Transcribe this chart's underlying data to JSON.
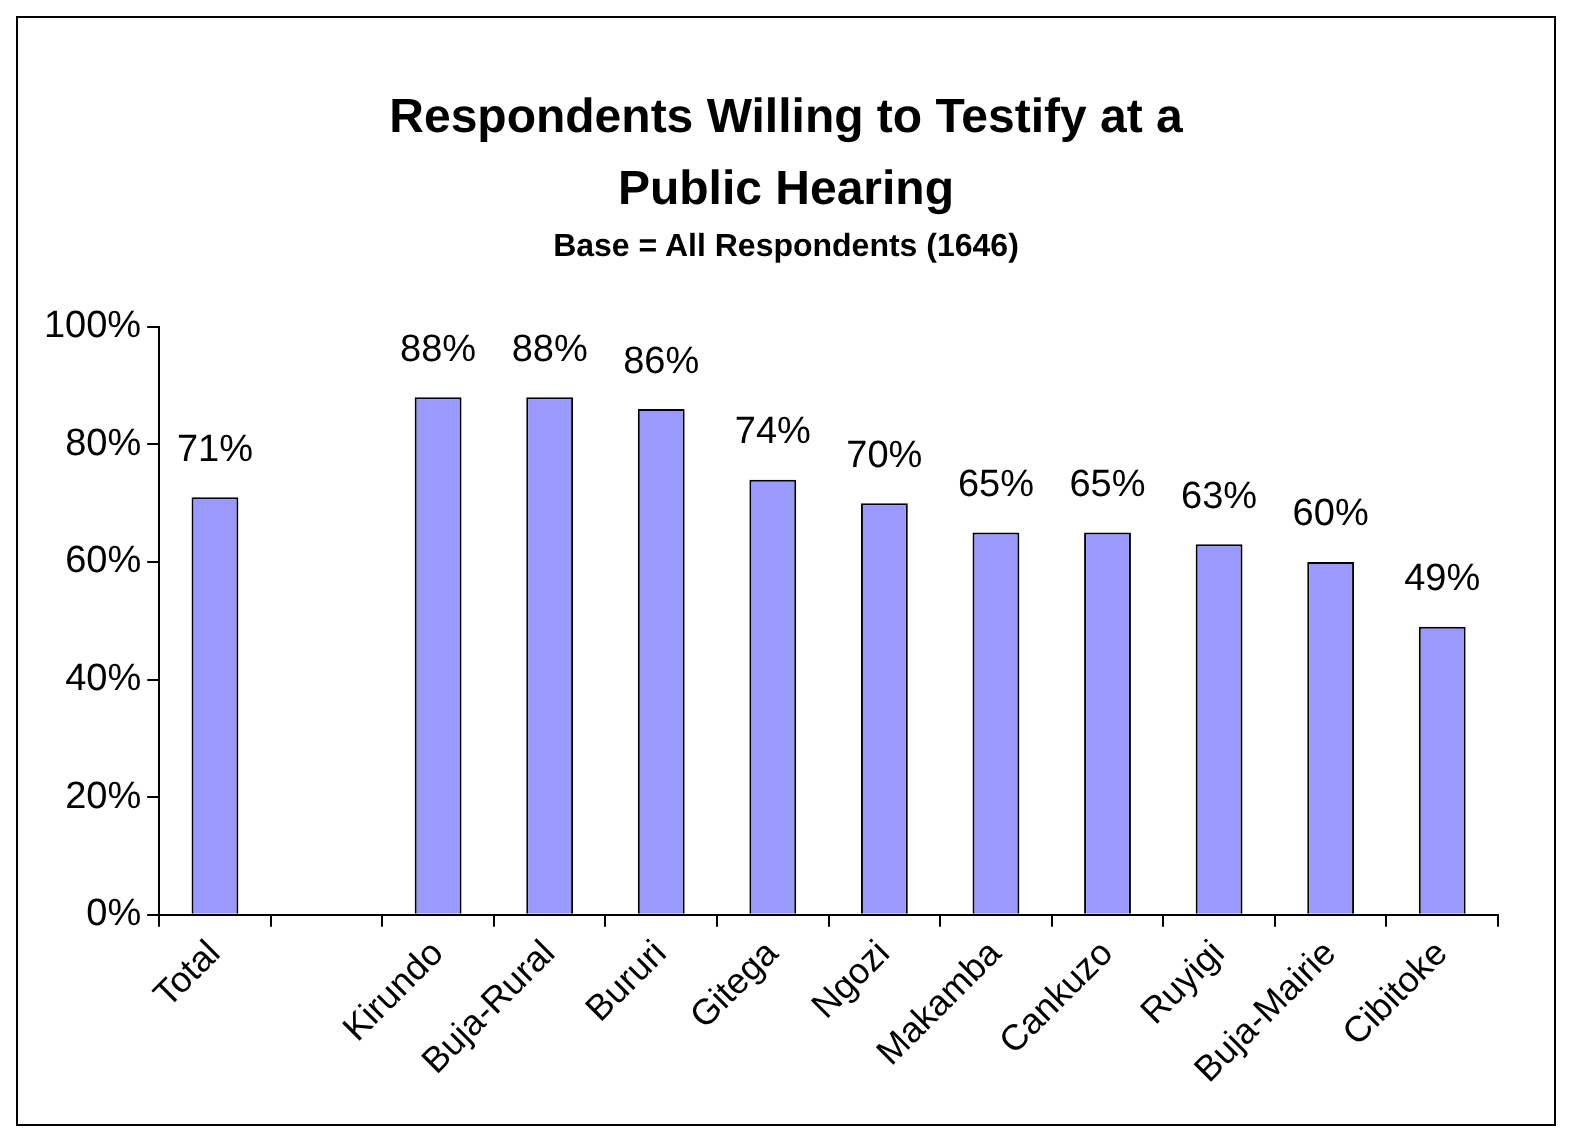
{
  "chart_data": {
    "type": "bar",
    "title": "Respondents Willing to Testify at a Public Hearing",
    "subtitle": "Base = All Respondents (1646)",
    "categories": [
      "Total",
      null,
      "Kirundo",
      "Buja-Rural",
      "Bururi",
      "Gitega",
      "Ngozi",
      "Makamba",
      "Cankuzo",
      "Ruyigi",
      "Buja-Mairie",
      "Cibitoke"
    ],
    "values": [
      71,
      null,
      88,
      88,
      86,
      74,
      70,
      65,
      65,
      63,
      60,
      49
    ],
    "value_labels": [
      "71%",
      null,
      "88%",
      "88%",
      "86%",
      "74%",
      "70%",
      "65%",
      "65%",
      "63%",
      "60%",
      "49%"
    ],
    "color": "#9999ff",
    "ylim": [
      0,
      100
    ],
    "yticks": [
      {
        "value": 0,
        "label": "0%"
      },
      {
        "value": 20,
        "label": "20%"
      },
      {
        "value": 40,
        "label": "40%"
      },
      {
        "value": 60,
        "label": "60%"
      },
      {
        "value": 80,
        "label": "80%"
      },
      {
        "value": 100,
        "label": "100%"
      }
    ]
  }
}
